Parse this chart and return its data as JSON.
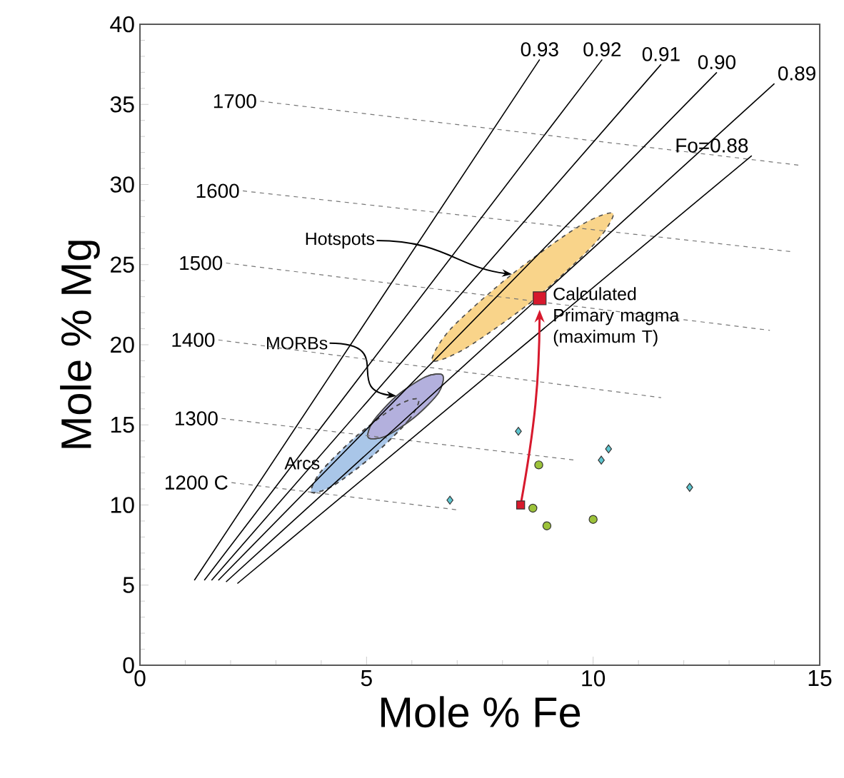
{
  "chart_data": {
    "type": "line",
    "xlabel": "Mole % Fe",
    "ylabel": "Mole % Mg",
    "xlim": [
      0,
      15
    ],
    "ylim": [
      0,
      40
    ],
    "xticks": [
      0,
      5,
      10,
      15
    ],
    "yticks": [
      0,
      5,
      10,
      15,
      20,
      25,
      30,
      35,
      40
    ],
    "grid": false,
    "series": [
      {
        "type": "area",
        "name": "Arcs",
        "color": "#a9c6e8",
        "line_style": "dashed",
        "x": [
          6.15,
          5.93,
          5.15,
          4.26,
          3.78,
          4.0,
          4.78,
          5.67
        ],
        "values": [
          16.6,
          15.3,
          13.1,
          11.2,
          10.8,
          12.1,
          14.3,
          16.2
        ]
      },
      {
        "type": "area",
        "name": "MORBs",
        "color": "#b3b0dd",
        "line_style": "solid",
        "x": [
          6.68,
          6.59,
          6.07,
          5.43,
          5.04,
          5.14,
          5.66,
          6.3
        ],
        "values": [
          18.1,
          17.0,
          15.5,
          14.3,
          14.2,
          15.2,
          16.8,
          18.0
        ]
      },
      {
        "type": "area",
        "name": "Hotspots",
        "color": "#f9d48a",
        "line_style": "dashed",
        "x": [
          10.44,
          10.03,
          8.69,
          7.2,
          6.45,
          6.86,
          8.21,
          9.69
        ],
        "values": [
          28.2,
          26.3,
          22.8,
          19.8,
          19.0,
          21.0,
          24.4,
          27.4
        ]
      },
      {
        "name": "1700",
        "color": "#777777",
        "line_style": "dashed",
        "x": [
          2.65,
          14.56
        ],
        "values": [
          35.2,
          31.2
        ]
      },
      {
        "name": "1600",
        "color": "#777777",
        "line_style": "dashed",
        "x": [
          2.27,
          14.4
        ],
        "values": [
          29.6,
          25.8
        ]
      },
      {
        "name": "1500",
        "color": "#777777",
        "line_style": "dashed",
        "x": [
          1.9,
          13.9
        ],
        "values": [
          25.1,
          20.9
        ]
      },
      {
        "name": "1400",
        "color": "#777777",
        "line_style": "dashed",
        "x": [
          1.73,
          11.5
        ],
        "values": [
          20.3,
          16.7
        ]
      },
      {
        "name": "1300",
        "color": "#777777",
        "line_style": "dashed",
        "x": [
          1.8,
          9.6
        ],
        "values": [
          15.4,
          12.8
        ]
      },
      {
        "name": "1200 C",
        "color": "#777777",
        "line_style": "dashed",
        "x": [
          2.02,
          7.0
        ],
        "values": [
          11.4,
          9.7
        ]
      },
      {
        "name": "0.93",
        "color": "#000000",
        "line_style": "solid",
        "x": [
          1.2,
          8.82
        ],
        "values": [
          5.3,
          37.8
        ]
      },
      {
        "name": "0.92",
        "color": "#000000",
        "line_style": "solid",
        "x": [
          1.42,
          10.2
        ],
        "values": [
          5.3,
          37.8
        ]
      },
      {
        "name": "0.91",
        "color": "#000000",
        "line_style": "solid",
        "x": [
          1.58,
          11.5
        ],
        "values": [
          5.3,
          37.5
        ]
      },
      {
        "name": "0.90",
        "color": "#000000",
        "line_style": "solid",
        "x": [
          1.73,
          12.73
        ],
        "values": [
          5.3,
          37.0
        ]
      },
      {
        "name": "0.89",
        "color": "#000000",
        "line_style": "solid",
        "x": [
          1.9,
          14.0
        ],
        "values": [
          5.2,
          36.3
        ]
      },
      {
        "name": "Fo=0.88",
        "color": "#000000",
        "line_style": "solid",
        "x": [
          2.15,
          13.5
        ],
        "values": [
          5.1,
          31.8
        ]
      },
      {
        "type": "scatter",
        "color": "#5ec6d0",
        "marker": "diamond",
        "x": [
          8.35,
          6.84,
          10.34,
          10.18,
          12.13
        ],
        "values": [
          14.6,
          10.3,
          13.5,
          12.8,
          11.1
        ]
      },
      {
        "type": "scatter",
        "color": "#9cc23a",
        "marker": "circle",
        "x": [
          8.8,
          8.67,
          8.98,
          10.0
        ],
        "values": [
          12.5,
          9.8,
          8.7,
          9.1
        ]
      },
      {
        "type": "scatter",
        "color": "#d7192d",
        "marker": "square",
        "x": [
          8.4
        ],
        "values": [
          10.0
        ]
      },
      {
        "type": "scatter",
        "color": "#d7192d",
        "marker": "square",
        "x": [
          8.82
        ],
        "values": [
          22.9
        ]
      }
    ],
    "annotations": [
      {
        "text": "Calculated Primary magma (maximum T)",
        "x": 8.82,
        "y": 22.9
      }
    ]
  }
}
